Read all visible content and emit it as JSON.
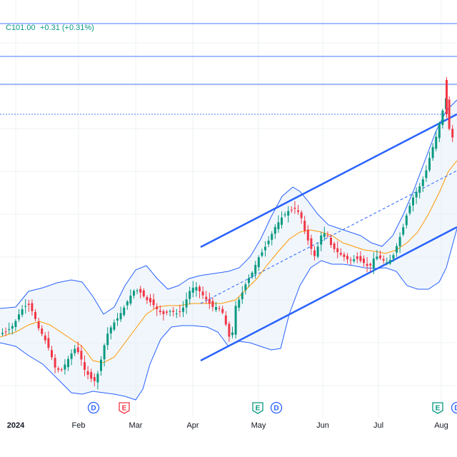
{
  "header": {
    "ohlc_text": "C101.00",
    "change_text": "+0.31 (+0.31%)",
    "up_color": "#089981"
  },
  "chart_data": {
    "type": "candlestick",
    "x_ticks": [
      {
        "label": "2024",
        "bold": true
      },
      {
        "label": "Feb"
      },
      {
        "label": "Mar"
      },
      {
        "label": "Apr"
      },
      {
        "label": "May"
      },
      {
        "label": "Jun"
      },
      {
        "label": "Jul"
      },
      {
        "label": "Aug"
      }
    ],
    "series_overlays": [
      "Bollinger Bands (upper, lower, basis)",
      "Trend channel"
    ],
    "event_markers": [
      {
        "letter": "D",
        "type": "dividend",
        "color": "#2962ff"
      },
      {
        "letter": "E",
        "type": "earnings",
        "color": "#f23645"
      },
      {
        "letter": "E",
        "type": "earnings",
        "color": "#089981"
      },
      {
        "letter": "D",
        "type": "dividend",
        "color": "#2962ff"
      },
      {
        "letter": "E",
        "type": "earnings",
        "color": "#089981"
      },
      {
        "letter": "D",
        "type": "dividend",
        "color": "#2962ff"
      }
    ],
    "colors": {
      "up": "#089981",
      "down": "#f23645",
      "band_line": "#2962ff",
      "band_fill": "#e3eefa",
      "basis": "#ff9800",
      "channel": "#2962ff"
    },
    "grid": true
  }
}
